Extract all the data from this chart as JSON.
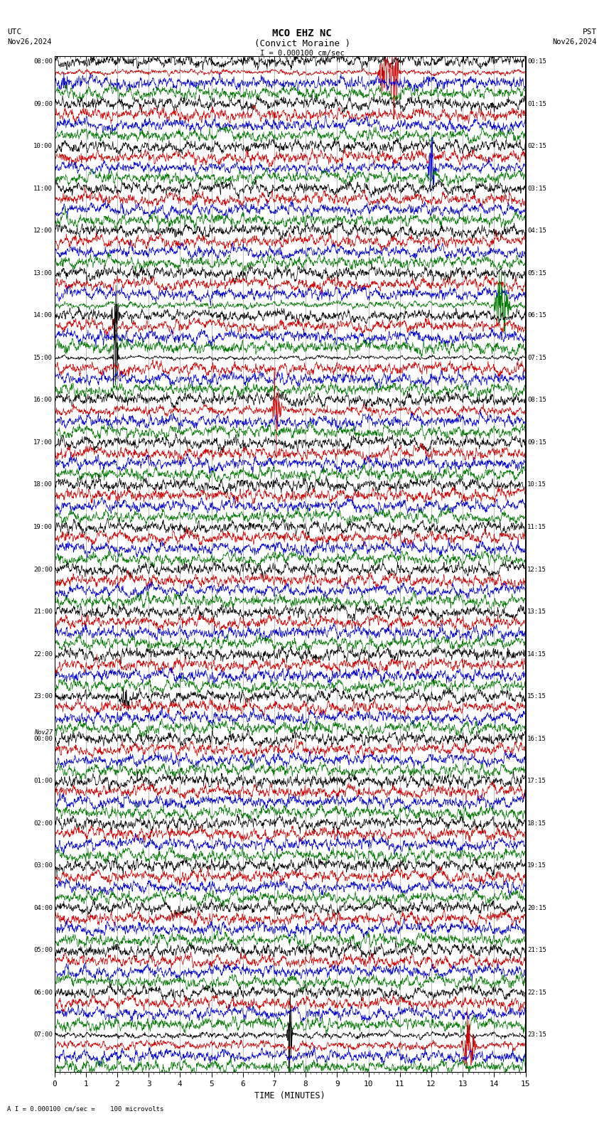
{
  "title_line1": "MCO EHZ NC",
  "title_line2": "(Convict Moraine )",
  "scale_label": "I = 0.000100 cm/sec",
  "utc_label": "UTC",
  "pst_label": "PST",
  "date_left": "Nov26,2024",
  "date_right": "Nov26,2024",
  "xlabel": "TIME (MINUTES)",
  "bottom_label": "A I = 0.000100 cm/sec =    100 microvolts",
  "xlim": [
    0,
    15
  ],
  "xticks": [
    0,
    1,
    2,
    3,
    4,
    5,
    6,
    7,
    8,
    9,
    10,
    11,
    12,
    13,
    14,
    15
  ],
  "bg_color": "#ffffff",
  "colors": [
    "#000000",
    "#cc0000",
    "#0000cc",
    "#007700"
  ],
  "grid_color": "#888888",
  "line_width": 0.5,
  "n_hours": 24,
  "traces_per_hour": 4,
  "left_times": [
    "08:00",
    "09:00",
    "10:00",
    "11:00",
    "12:00",
    "13:00",
    "14:00",
    "15:00",
    "16:00",
    "17:00",
    "18:00",
    "19:00",
    "20:00",
    "21:00",
    "22:00",
    "23:00",
    "00:00",
    "01:00",
    "02:00",
    "03:00",
    "04:00",
    "05:00",
    "06:00",
    "07:00"
  ],
  "left_times_extra": [
    "Nov27"
  ],
  "right_times": [
    "00:15",
    "01:15",
    "02:15",
    "03:15",
    "04:15",
    "05:15",
    "06:15",
    "07:15",
    "08:15",
    "09:15",
    "10:15",
    "11:15",
    "12:15",
    "13:15",
    "14:15",
    "15:15",
    "16:15",
    "17:15",
    "18:15",
    "19:15",
    "20:15",
    "21:15",
    "22:15",
    "23:15"
  ]
}
